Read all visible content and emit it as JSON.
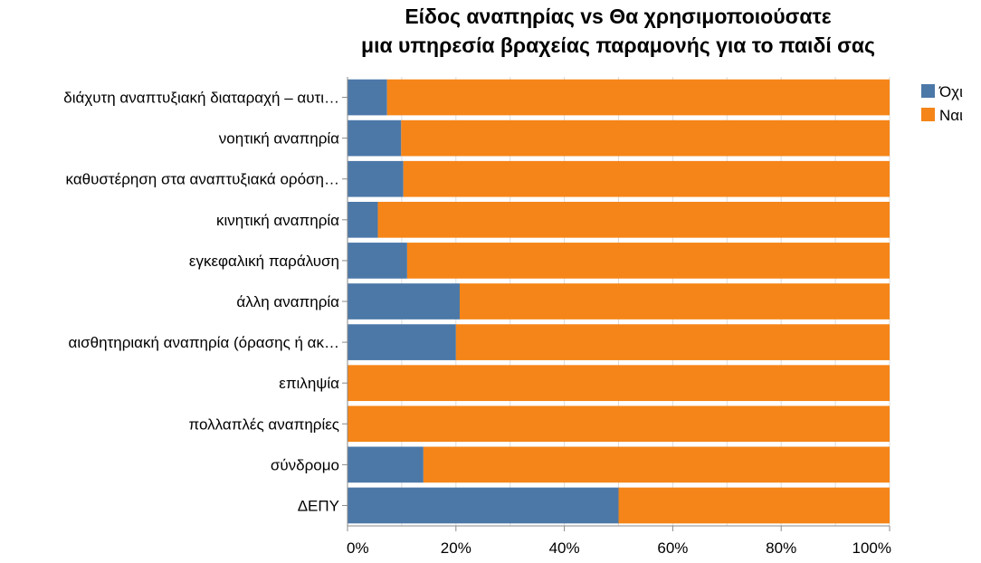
{
  "chart_data": {
    "type": "bar",
    "orientation": "horizontal",
    "stacked": "normalized",
    "title": [
      "Είδος αναπηρίας vs Θα χρησιμοποιούσατε",
      "μια υπηρεσία βραχείας παραμονής για το παιδί σας"
    ],
    "categories": [
      "διάχυτη αναπτυξιακή διαταραχή – αυτι…",
      "νοητική αναπηρία",
      "καθυστέρηση στα αναπτυξιακά ορόση…",
      "κινητική αναπηρία",
      "εγκεφαλική παράλυση",
      "άλλη αναπηρία",
      "αισθητηριακή αναπηρία (όρασης ή ακ…",
      "επιληψία",
      "πολλαπλές αναπηρίες",
      "σύνδρομο",
      "ΔΕΠΥ"
    ],
    "series": [
      {
        "name": "Όχι",
        "color": "#4c78a8",
        "values": [
          7.3,
          9.9,
          10.3,
          5.6,
          11.0,
          20.7,
          20.0,
          0,
          0,
          14.0,
          50.0
        ]
      },
      {
        "name": "Ναι",
        "color": "#f58518",
        "values": [
          92.7,
          90.1,
          89.7,
          94.4,
          89.0,
          79.3,
          80.0,
          100,
          100,
          86.0,
          50.0
        ]
      }
    ],
    "xlim": [
      0,
      100
    ],
    "xticks": [
      "0%",
      "20%",
      "40%",
      "60%",
      "80%",
      "100%"
    ],
    "xlabel": "",
    "ylabel": "",
    "grid": true,
    "legend_position": "top-right"
  }
}
